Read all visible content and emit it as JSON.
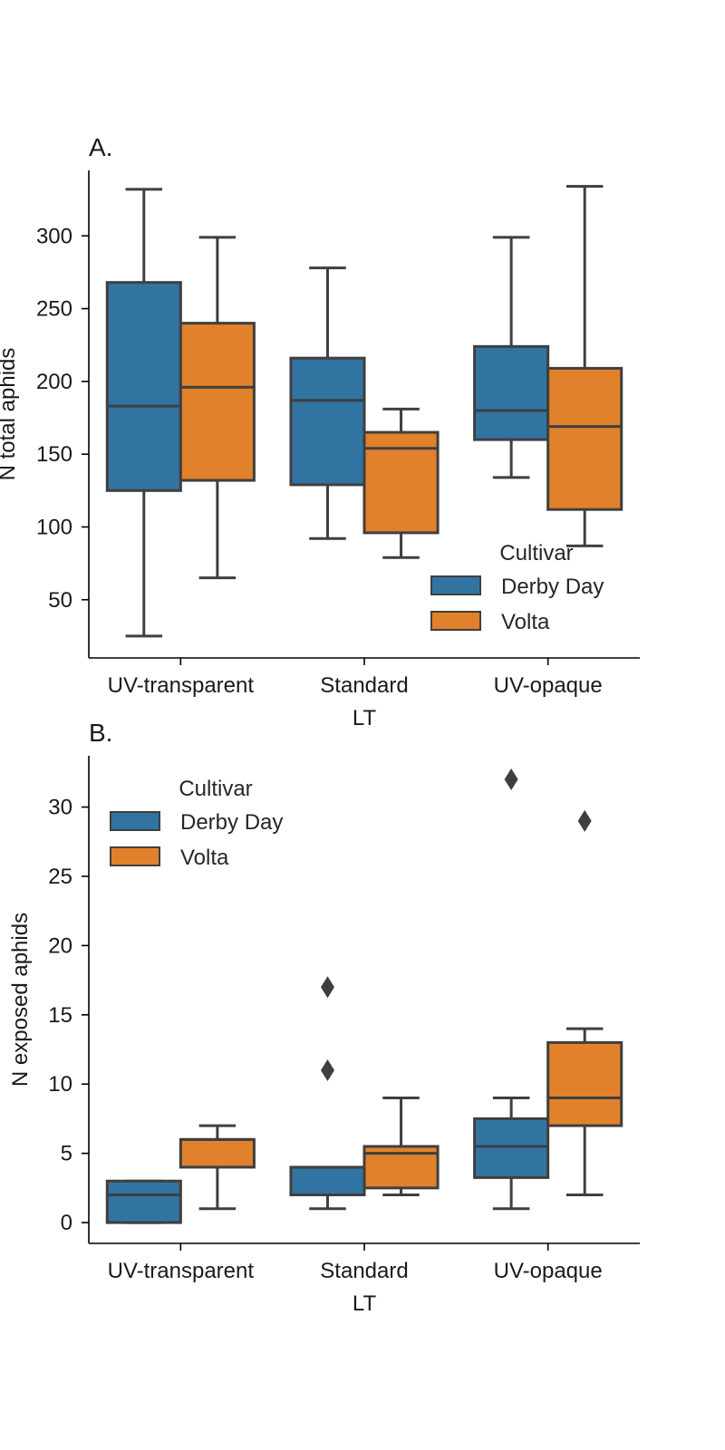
{
  "colors": {
    "Derby Day": "#3274a1",
    "Volta": "#e1812c",
    "edge": "#3f3f3f"
  },
  "chart_data": [
    {
      "type": "box",
      "title": "A.",
      "xlabel": "LT",
      "ylabel": "N total aphids",
      "categories": [
        "UV-transparent",
        "Standard",
        "UV-opaque"
      ],
      "ylim": [
        10,
        345
      ],
      "yticks": [
        50,
        100,
        150,
        200,
        250,
        300
      ],
      "legend": {
        "title": "Cultivar",
        "position": "lower-right"
      },
      "series": [
        {
          "name": "Derby Day",
          "boxes": [
            {
              "whislo": 25,
              "q1": 125,
              "med": 183,
              "q3": 268,
              "whishi": 332,
              "fliers": []
            },
            {
              "whislo": 92,
              "q1": 129,
              "med": 187,
              "q3": 216,
              "whishi": 278,
              "fliers": []
            },
            {
              "whislo": 134,
              "q1": 160,
              "med": 180,
              "q3": 224,
              "whishi": 299,
              "fliers": []
            }
          ]
        },
        {
          "name": "Volta",
          "boxes": [
            {
              "whislo": 65,
              "q1": 132,
              "med": 196,
              "q3": 240,
              "whishi": 299,
              "fliers": []
            },
            {
              "whislo": 79,
              "q1": 96,
              "med": 154,
              "q3": 165,
              "whishi": 181,
              "fliers": []
            },
            {
              "whislo": 87,
              "q1": 112,
              "med": 169,
              "q3": 209,
              "whishi": 334,
              "fliers": []
            }
          ]
        }
      ]
    },
    {
      "type": "box",
      "title": "B.",
      "xlabel": "LT",
      "ylabel": "N exposed aphids",
      "categories": [
        "UV-transparent",
        "Standard",
        "UV-opaque"
      ],
      "ylim": [
        -1.5,
        33.7
      ],
      "yticks": [
        0,
        5,
        10,
        15,
        20,
        25,
        30
      ],
      "legend": {
        "title": "Cultivar",
        "position": "upper-left"
      },
      "series": [
        {
          "name": "Derby Day",
          "boxes": [
            {
              "whislo": 0,
              "q1": 0,
              "med": 2,
              "q3": 3,
              "whishi": 3,
              "fliers": []
            },
            {
              "whislo": 1,
              "q1": 2,
              "med": 4,
              "q3": 4,
              "whishi": 4,
              "fliers": [
                11,
                17
              ]
            },
            {
              "whislo": 1,
              "q1": 3.25,
              "med": 5.5,
              "q3": 7.5,
              "whishi": 9,
              "fliers": [
                32
              ]
            }
          ]
        },
        {
          "name": "Volta",
          "boxes": [
            {
              "whislo": 1,
              "q1": 4,
              "med": 6,
              "q3": 6,
              "whishi": 7,
              "fliers": []
            },
            {
              "whislo": 2,
              "q1": 2.5,
              "med": 5,
              "q3": 5.5,
              "whishi": 9,
              "fliers": []
            },
            {
              "whislo": 2,
              "q1": 7,
              "med": 9,
              "q3": 13,
              "whishi": 14,
              "fliers": [
                29
              ]
            }
          ]
        }
      ]
    }
  ]
}
